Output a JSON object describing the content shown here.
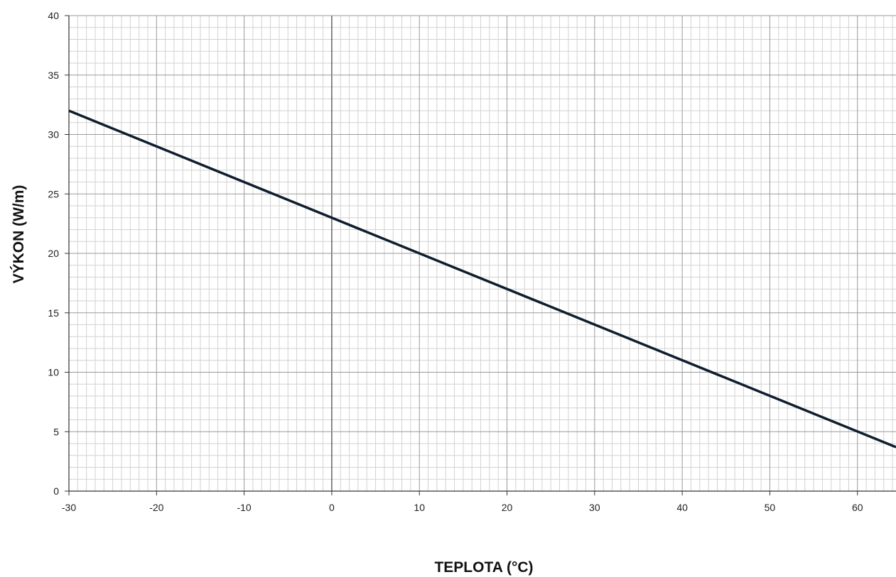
{
  "chart_data": {
    "type": "line",
    "title": "",
    "xlabel": "TEPLOTA (°C)",
    "ylabel": "VÝKON (W/m)",
    "xlim": [
      -30,
      64.4
    ],
    "ylim": [
      0,
      40
    ],
    "x_ticks": [
      -30,
      -20,
      -10,
      0,
      10,
      20,
      30,
      40,
      50,
      60
    ],
    "x_tick_labels": [
      "-30",
      "-20",
      "-10",
      "0",
      "10",
      "20",
      "30",
      "40",
      "50",
      "60"
    ],
    "y_ticks": [
      0,
      5,
      10,
      15,
      20,
      25,
      30,
      35,
      40
    ],
    "y_tick_labels": [
      "0",
      "5",
      "10",
      "15",
      "20",
      "25",
      "30",
      "35",
      "40"
    ],
    "grid": "major and minor",
    "legend": "none",
    "series": [
      {
        "x": [
          -30,
          0,
          64.4
        ],
        "y": [
          32,
          23,
          3.7
        ],
        "color": "#0f1e2e"
      }
    ]
  }
}
